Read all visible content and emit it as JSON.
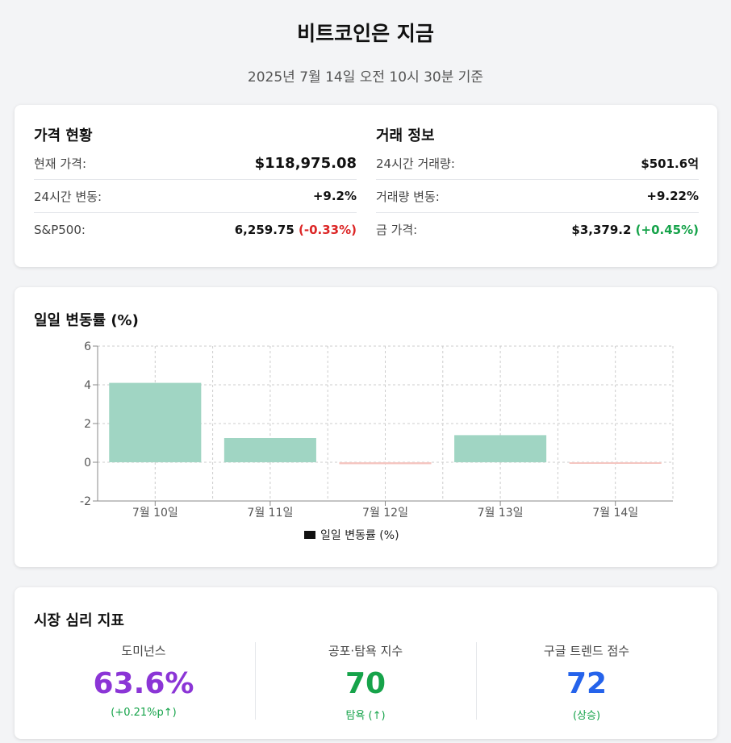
{
  "header": {
    "title": "비트코인은 지금",
    "subtitle": "2025년 7월 14일 오전 10시 30분 기준"
  },
  "price": {
    "heading": "가격 현황",
    "rows": [
      {
        "label": "현재 가격:",
        "value": "$118,975.08",
        "change": ""
      },
      {
        "label": "24시간 변동:",
        "value": "+9.2%",
        "change": ""
      },
      {
        "label": "S&P500:",
        "value": "6,259.75",
        "change": "(-0.33%)"
      }
    ]
  },
  "trade": {
    "heading": "거래 정보",
    "rows": [
      {
        "label": "24시간 거래량:",
        "value": "$501.6억",
        "change": ""
      },
      {
        "label": "거래량 변동:",
        "value": "+9.22%",
        "change": ""
      },
      {
        "label": "금 가격:",
        "value": "$3,379.2",
        "change": "(+0.45%)"
      }
    ]
  },
  "chart_section": {
    "heading": "일일 변동률 (%)"
  },
  "chart_data": {
    "type": "bar",
    "categories": [
      "7월 10일",
      "7월 11일",
      "7월 12일",
      "7월 13일",
      "7월 14일"
    ],
    "series": [
      {
        "name": "일일 변동률 (%)",
        "values": [
          4.1,
          1.25,
          -0.1,
          1.4,
          -0.05
        ]
      }
    ],
    "ylim": [
      -2,
      6
    ],
    "yticks": [
      -2,
      0,
      2,
      4,
      6
    ],
    "grid": true,
    "legend": "bottom",
    "colors": {
      "positive": "#a0d5c3",
      "negative": "#f5c6c0"
    }
  },
  "sentiment": {
    "heading": "시장 심리 지표",
    "metrics": [
      {
        "label": "도미넌스",
        "value": "63.6%",
        "note": "(+0.21%p↑)",
        "color": "#8b35d6",
        "note_color": "#16a34a"
      },
      {
        "label": "공포·탐욕 지수",
        "value": "70",
        "note": "탐욕 (↑)",
        "color": "#16a34a",
        "note_color": "#16a34a"
      },
      {
        "label": "구글 트렌드 점수",
        "value": "72",
        "note": "(상승)",
        "color": "#2563eb",
        "note_color": "#16a34a"
      }
    ]
  }
}
